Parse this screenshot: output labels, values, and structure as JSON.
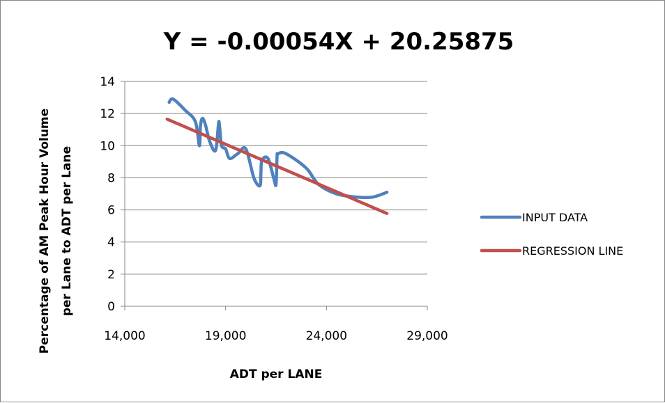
{
  "chart_data": {
    "type": "line",
    "title": "Y = -0.00054X + 20.25875",
    "xlabel": "ADT per LANE",
    "ylabel_line1": "Percentage of AM Peak Hour Volume",
    "ylabel_line2": "per Lane to ADT per Lane",
    "xlim": [
      14000,
      29000
    ],
    "ylim": [
      0,
      14
    ],
    "xticks": [
      14000,
      19000,
      24000,
      29000
    ],
    "xtick_labels": [
      "14,000",
      "19,000",
      "24,000",
      "29,000"
    ],
    "yticks": [
      0,
      2,
      4,
      6,
      8,
      10,
      12,
      14
    ],
    "ytick_labels": [
      "0",
      "2",
      "4",
      "6",
      "8",
      "10",
      "12",
      "14"
    ],
    "grid": true,
    "legend_position": "right",
    "series": [
      {
        "name": "INPUT DATA",
        "color": "#4F81BD",
        "x": [
          16200,
          16400,
          17000,
          17500,
          17700,
          17750,
          17850,
          18000,
          18200,
          18500,
          18650,
          18700,
          18800,
          19000,
          19200,
          19600,
          20000,
          20400,
          20700,
          20750,
          20800,
          21100,
          21400,
          21500,
          21550,
          21600,
          22000,
          23000,
          23600,
          24500,
          25500,
          26300,
          27000
        ],
        "y": [
          12.7,
          12.9,
          12.2,
          11.5,
          10.0,
          11.2,
          11.7,
          11.3,
          10.3,
          9.7,
          11.4,
          11.2,
          10.0,
          9.8,
          9.2,
          9.5,
          9.8,
          8.0,
          7.5,
          8.3,
          9.1,
          9.2,
          7.9,
          7.6,
          9.3,
          9.5,
          9.5,
          8.6,
          7.6,
          7.0,
          6.8,
          6.8,
          7.1
        ]
      },
      {
        "name": "REGRESSION LINE",
        "color": "#C0504D",
        "x": [
          16100,
          27000
        ],
        "y": [
          11.65,
          5.78
        ]
      }
    ]
  }
}
